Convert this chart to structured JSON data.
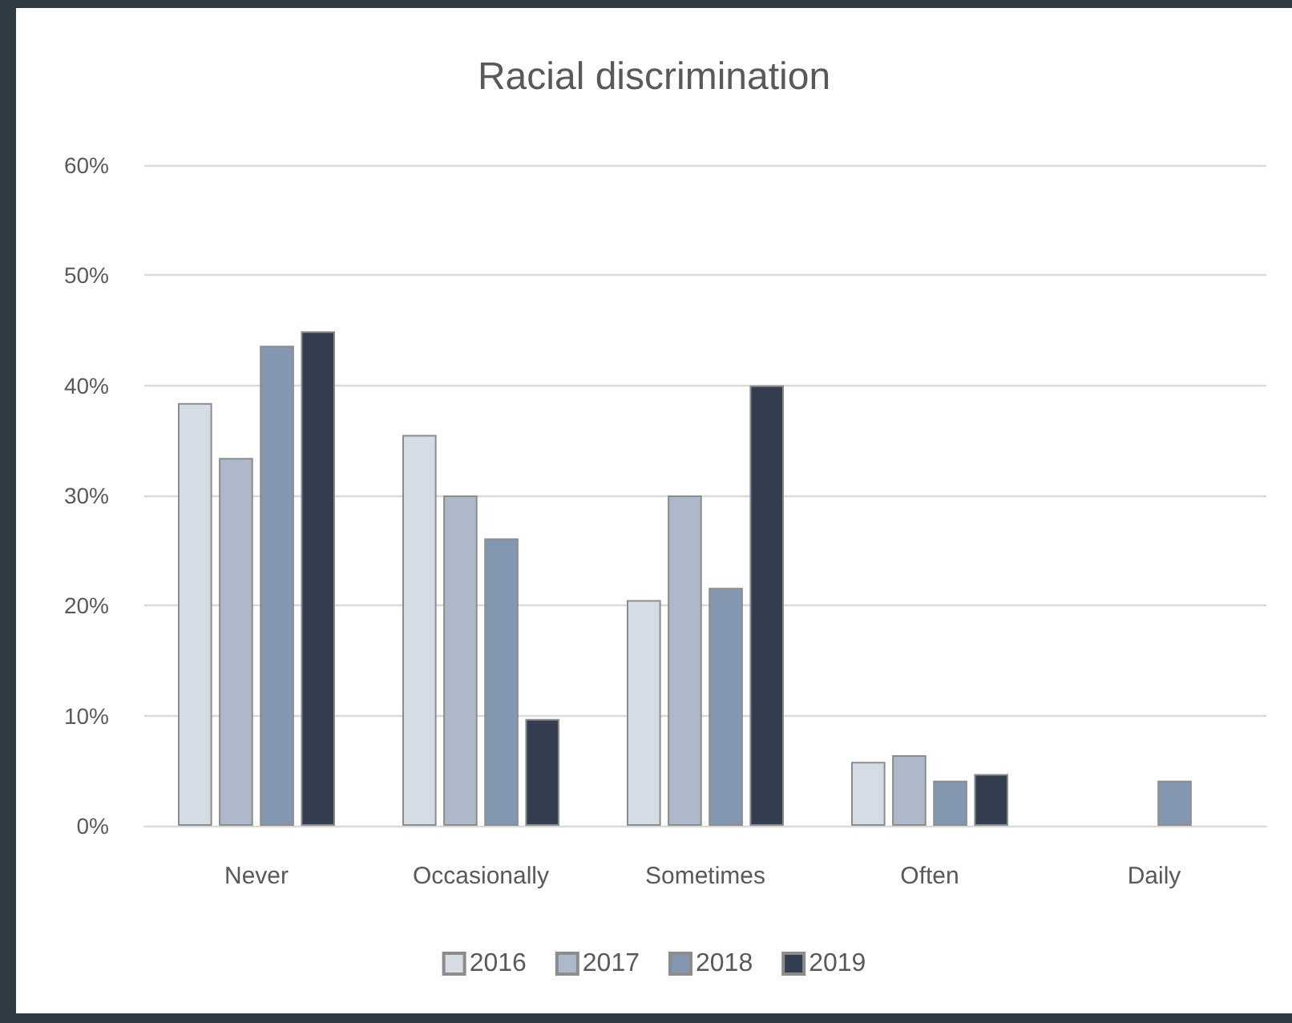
{
  "chart_data": {
    "type": "bar",
    "title": "Racial discrimination",
    "categories": [
      "Never",
      "Occasionally",
      "Sometimes",
      "Often",
      "Daily"
    ],
    "series": [
      {
        "name": "2016",
        "color": "#d6dce5",
        "values": [
          38.4,
          35.5,
          20.5,
          5.8,
          null
        ]
      },
      {
        "name": "2017",
        "color": "#adb9ca",
        "values": [
          33.4,
          30,
          30,
          6.4,
          null
        ]
      },
      {
        "name": "2018",
        "color": "#8497b0",
        "values": [
          43.6,
          26.1,
          21.6,
          4.1,
          4.1
        ]
      },
      {
        "name": "2019",
        "color": "#333f50",
        "values": [
          44.9,
          9.7,
          40,
          4.7,
          null
        ]
      }
    ],
    "ylim": [
      0,
      60
    ],
    "yticks": [
      {
        "value": 0,
        "label": "0%"
      },
      {
        "value": 10,
        "label": "10%"
      },
      {
        "value": 20,
        "label": "20%"
      },
      {
        "value": 30,
        "label": "30%"
      },
      {
        "value": 40,
        "label": "40%"
      },
      {
        "value": 50,
        "label": "50%"
      },
      {
        "value": 60,
        "label": "60%"
      }
    ],
    "grid": "y",
    "legend": "bottom"
  }
}
